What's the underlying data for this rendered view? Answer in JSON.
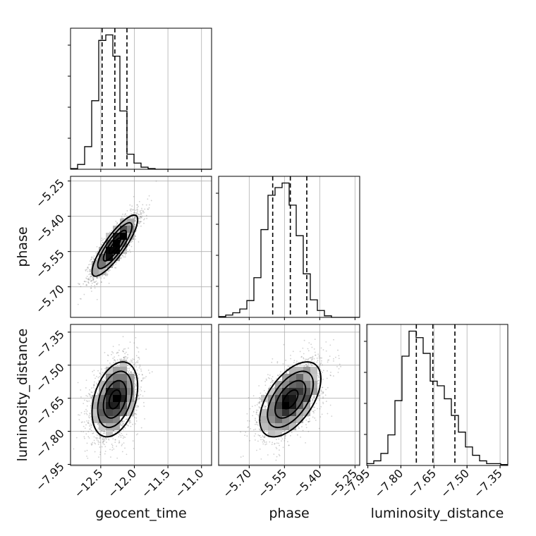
{
  "chart_data": {
    "type": "corner",
    "grid": true,
    "params": [
      {
        "key": "geocent_time",
        "label": "geocent_time",
        "range": [
          -12.95,
          -10.85
        ],
        "ticks": [
          -12.5,
          -12.0,
          -11.5,
          -11.0
        ],
        "tick_labels": [
          "−12.5",
          "−12.0",
          "−11.5",
          "−11.0"
        ],
        "quantiles": [
          -12.48,
          -12.29,
          -12.11
        ]
      },
      {
        "key": "phase",
        "label": "phase",
        "range": [
          -5.83,
          -5.23
        ],
        "ticks": [
          -5.7,
          -5.55,
          -5.4,
          -5.25
        ],
        "tick_labels": [
          "−5.70",
          "−5.55",
          "−5.40",
          "−5.25"
        ],
        "quantiles": [
          -5.6,
          -5.525,
          -5.455
        ]
      },
      {
        "key": "luminosity_distance",
        "label": "luminosity_distance",
        "range": [
          -7.955,
          -7.315
        ],
        "ticks": [
          -7.95,
          -7.8,
          -7.65,
          -7.5,
          -7.35
        ],
        "tick_labels": [
          "−7.95",
          "−7.80",
          "−7.65",
          "−7.50",
          "−7.35"
        ],
        "quantiles": [
          -7.73,
          -7.655,
          -7.555
        ]
      }
    ],
    "histograms": {
      "geocent_time": {
        "bin_edges_range": [
          -12.95,
          -10.85
        ],
        "bins": 20,
        "counts": [
          1,
          7,
          33,
          100,
          188,
          196,
          165,
          85,
          22,
          9,
          3,
          1,
          0,
          0,
          0,
          0,
          0,
          0,
          0,
          0
        ]
      },
      "phase": {
        "bin_edges_range": [
          -5.83,
          -5.23
        ],
        "bins": 20,
        "counts": [
          1,
          3,
          6,
          11,
          22,
          52,
          115,
          160,
          170,
          176,
          147,
          107,
          57,
          23,
          9,
          2,
          0,
          0,
          0,
          0
        ]
      },
      "luminosity_distance": {
        "bin_edges_range": [
          -7.955,
          -7.315
        ],
        "bins": 20,
        "counts": [
          2,
          5,
          13,
          33,
          70,
          118,
          145,
          138,
          121,
          91,
          86,
          72,
          54,
          36,
          20,
          11,
          5,
          2,
          2,
          1
        ]
      }
    },
    "joint": [
      {
        "x": "geocent_time",
        "y": "phase",
        "center": [
          -12.29,
          -5.525
        ],
        "sigma": [
          0.17,
          0.065
        ],
        "rho": 0.85
      },
      {
        "x": "geocent_time",
        "y": "luminosity_distance",
        "center": [
          -12.29,
          -7.655
        ],
        "sigma": [
          0.17,
          0.085
        ],
        "rho": 0.35
      },
      {
        "x": "phase",
        "y": "luminosity_distance",
        "center": [
          -5.525,
          -7.655
        ],
        "sigma": [
          0.065,
          0.085
        ],
        "rho": 0.55
      }
    ],
    "contour_levels_sigma": [
      0.5,
      1.0,
      1.5,
      2.0
    ]
  }
}
